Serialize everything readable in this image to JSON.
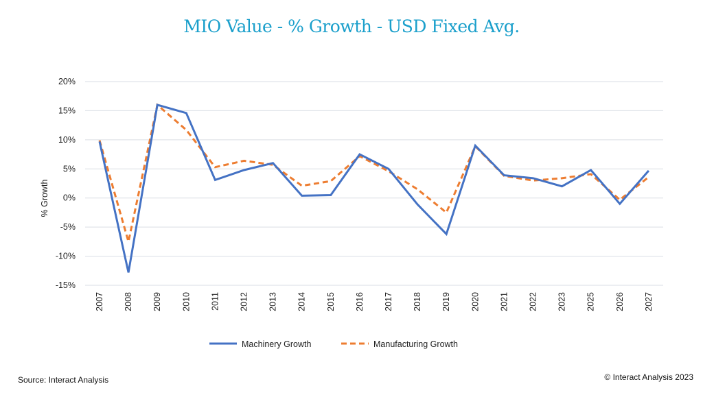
{
  "chart_data": {
    "type": "line",
    "title": "MIO Value - % Growth - USD Fixed Avg.",
    "xlabel": "",
    "ylabel": "% Growth",
    "ylim": [
      -15,
      20
    ],
    "yticks": [
      "-15%",
      "-10%",
      "-5%",
      "0%",
      "5%",
      "10%",
      "15%",
      "20%"
    ],
    "ytick_values": [
      -15,
      -10,
      -5,
      0,
      5,
      10,
      15,
      20
    ],
    "grid": true,
    "legend_position": "bottom",
    "categories": [
      "2007",
      "2008",
      "2009",
      "2010",
      "2011",
      "2012",
      "2013",
      "2014",
      "2015",
      "2016",
      "2017",
      "2018",
      "2019",
      "2020",
      "2021",
      "2022",
      "2023",
      "2025",
      "2026",
      "2027"
    ],
    "series": [
      {
        "name": "Machinery Growth",
        "color": "#4472c4",
        "style": "solid",
        "values": [
          9.7,
          -12.8,
          16.0,
          14.6,
          3.1,
          4.8,
          6.0,
          0.4,
          0.5,
          7.5,
          5.0,
          -1.1,
          -6.2,
          9.0,
          3.9,
          3.4,
          2.0,
          4.8,
          -1.0,
          4.7
        ]
      },
      {
        "name": "Manufacturing Growth",
        "color": "#ed7d31",
        "style": "dashed",
        "values": [
          9.9,
          -7.5,
          16.0,
          11.7,
          5.3,
          6.4,
          5.7,
          2.1,
          2.9,
          7.2,
          4.6,
          1.5,
          -2.5,
          8.9,
          3.8,
          3.0,
          3.4,
          4.1,
          -0.3,
          3.6
        ]
      }
    ]
  },
  "footer": {
    "source": "Source: Interact Analysis",
    "copyright": "© Interact Analysis 2023"
  }
}
